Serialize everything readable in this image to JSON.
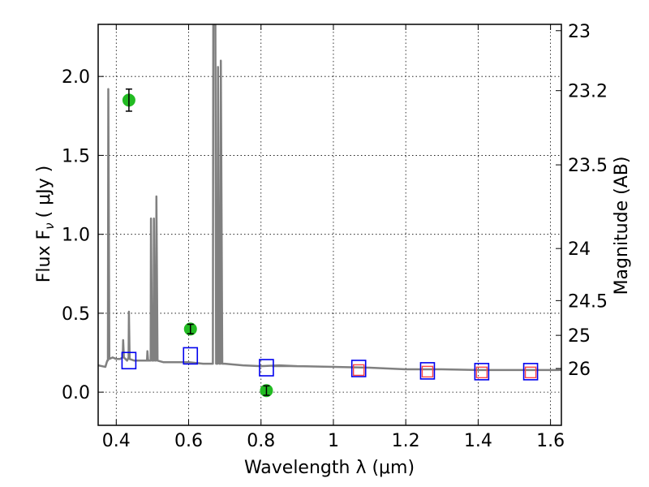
{
  "chart_data": {
    "type": "scatter",
    "xlabel": "Wavelength  λ (μm)",
    "ylabel_left": "Flux  F",
    "ylabel_left_sub": "ν",
    "ylabel_left_unit": "( μJy )",
    "ylabel_right": "Magnitude (AB)",
    "xlim": [
      0.35,
      1.63
    ],
    "ylim": [
      -0.21,
      2.33
    ],
    "grid": true,
    "x_ticks": [
      {
        "v": 0.4,
        "label": "0.4"
      },
      {
        "v": 0.6,
        "label": "0.6"
      },
      {
        "v": 0.8,
        "label": "0.8"
      },
      {
        "v": 1.0,
        "label": "1"
      },
      {
        "v": 1.2,
        "label": "1.2"
      },
      {
        "v": 1.4,
        "label": "1.4"
      },
      {
        "v": 1.6,
        "label": "1.6"
      }
    ],
    "y_ticks": [
      {
        "v": 0.0,
        "label": "0.0"
      },
      {
        "v": 0.5,
        "label": "0.5"
      },
      {
        "v": 1.0,
        "label": "1.0"
      },
      {
        "v": 1.5,
        "label": "1.5"
      },
      {
        "v": 2.0,
        "label": "2.0"
      }
    ],
    "mag_ticks": [
      {
        "flux": 2.29,
        "label": "23"
      },
      {
        "flux": 1.91,
        "label": "23.2"
      },
      {
        "flux": 1.44,
        "label": "23.5"
      },
      {
        "flux": 0.91,
        "label": "24"
      },
      {
        "flux": 0.58,
        "label": "24.5"
      },
      {
        "flux": 0.36,
        "label": "25"
      },
      {
        "flux": 0.15,
        "label": "26"
      }
    ],
    "series": [
      {
        "kind": "model_spectrum",
        "color": "#808080",
        "points": [
          [
            0.35,
            0.17
          ],
          [
            0.37,
            0.16
          ],
          [
            0.375,
            0.2
          ],
          [
            0.377,
            0.2
          ],
          [
            0.378,
            1.92
          ],
          [
            0.381,
            0.21
          ],
          [
            0.39,
            0.22
          ],
          [
            0.4,
            0.21
          ],
          [
            0.41,
            0.21
          ],
          [
            0.418,
            0.22
          ],
          [
            0.419,
            0.33
          ],
          [
            0.421,
            0.22
          ],
          [
            0.43,
            0.2
          ],
          [
            0.434,
            0.22
          ],
          [
            0.435,
            0.51
          ],
          [
            0.437,
            0.21
          ],
          [
            0.45,
            0.2
          ],
          [
            0.47,
            0.2
          ],
          [
            0.485,
            0.2
          ],
          [
            0.486,
            0.26
          ],
          [
            0.488,
            0.2
          ],
          [
            0.495,
            0.2
          ],
          [
            0.496,
            1.1
          ],
          [
            0.499,
            0.2
          ],
          [
            0.503,
            0.2
          ],
          [
            0.504,
            1.1
          ],
          [
            0.507,
            0.2
          ],
          [
            0.51,
            0.2
          ],
          [
            0.511,
            1.24
          ],
          [
            0.514,
            0.2
          ],
          [
            0.53,
            0.19
          ],
          [
            0.56,
            0.19
          ],
          [
            0.6,
            0.19
          ],
          [
            0.64,
            0.18
          ],
          [
            0.66,
            0.18
          ],
          [
            0.667,
            0.18
          ],
          [
            0.668,
            2.33
          ],
          [
            0.674,
            2.33
          ],
          [
            0.676,
            0.18
          ],
          [
            0.68,
            0.18
          ],
          [
            0.681,
            2.06
          ],
          [
            0.685,
            0.18
          ],
          [
            0.688,
            0.18
          ],
          [
            0.689,
            2.1
          ],
          [
            0.693,
            0.18
          ],
          [
            0.7,
            0.18
          ],
          [
            0.75,
            0.17
          ],
          [
            0.8,
            0.165
          ],
          [
            0.85,
            0.17
          ],
          [
            0.9,
            0.165
          ],
          [
            1.0,
            0.16
          ],
          [
            1.1,
            0.155
          ],
          [
            1.2,
            0.145
          ],
          [
            1.3,
            0.145
          ],
          [
            1.4,
            0.14
          ],
          [
            1.5,
            0.14
          ],
          [
            1.63,
            0.14
          ]
        ]
      },
      {
        "kind": "observed_flux",
        "color": "#22bb22",
        "points": [
          {
            "x": 0.435,
            "y": 1.85,
            "err": 0.07
          },
          {
            "x": 0.605,
            "y": 0.4,
            "err": 0.03
          },
          {
            "x": 0.815,
            "y": 0.01,
            "err": 0.03
          }
        ]
      },
      {
        "kind": "model_band_flux",
        "color": "#0000ee",
        "points": [
          {
            "x": 0.435,
            "y": 0.2
          },
          {
            "x": 0.605,
            "y": 0.23
          },
          {
            "x": 0.815,
            "y": 0.155
          },
          {
            "x": 1.07,
            "y": 0.15
          },
          {
            "x": 1.26,
            "y": 0.135
          },
          {
            "x": 1.41,
            "y": 0.13
          },
          {
            "x": 1.545,
            "y": 0.13
          }
        ]
      },
      {
        "kind": "upper_band_flux",
        "color": "#ff4444",
        "points": [
          {
            "x": 1.07,
            "y": 0.14
          },
          {
            "x": 1.26,
            "y": 0.13
          },
          {
            "x": 1.41,
            "y": 0.125
          },
          {
            "x": 1.545,
            "y": 0.125
          }
        ]
      }
    ]
  }
}
